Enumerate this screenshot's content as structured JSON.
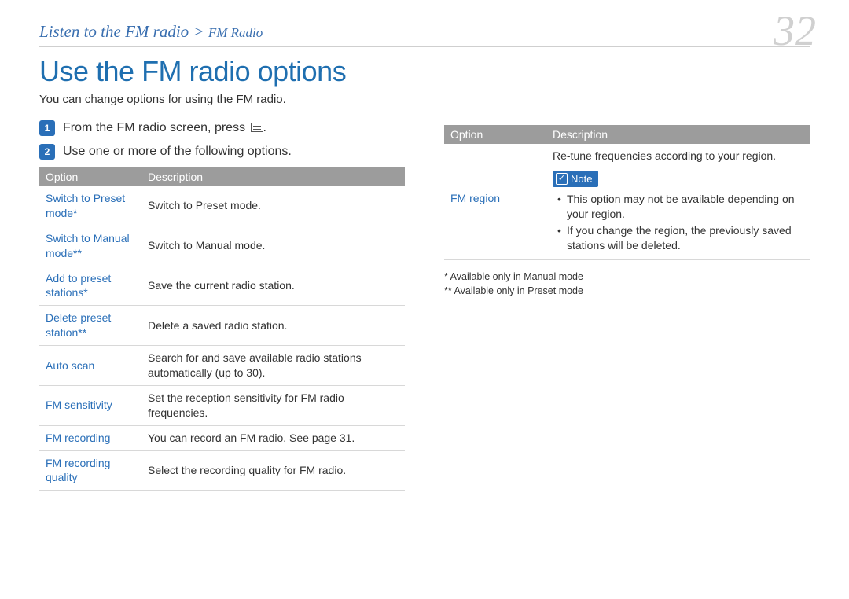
{
  "breadcrumb": {
    "main": "Listen to the FM radio",
    "sep": ">",
    "sub": "FM Radio"
  },
  "page_number": "32",
  "title": "Use the FM radio options",
  "intro": "You can change options for using the FM radio.",
  "steps": [
    {
      "num": "1",
      "text_pre": "From the FM radio screen, press ",
      "text_post": "."
    },
    {
      "num": "2",
      "text": "Use one or more of the following options."
    }
  ],
  "table_headers": {
    "option": "Option",
    "description": "Description"
  },
  "left_rows": [
    {
      "option": "Switch to Preset mode*",
      "desc": "Switch to Preset mode."
    },
    {
      "option": "Switch to Manual mode**",
      "desc": "Switch to Manual mode."
    },
    {
      "option": "Add to preset stations*",
      "desc": "Save the current radio station."
    },
    {
      "option": "Delete preset station**",
      "desc": "Delete a saved radio station."
    },
    {
      "option": "Auto scan",
      "desc": "Search for and save available radio stations automatically (up to 30)."
    },
    {
      "option": "FM sensitivity",
      "desc": "Set the reception sensitivity for FM radio frequencies."
    },
    {
      "option": "FM recording",
      "desc": "You can record an FM radio. See page 31."
    },
    {
      "option": "FM recording quality",
      "desc": "Select the recording quality for FM radio."
    }
  ],
  "right_row": {
    "option": "FM region",
    "desc_intro": "Re-tune frequencies according to your region.",
    "note_label": "Note",
    "notes": [
      "This option may not be available depending on your region.",
      "If you change the region, the previously saved stations will be deleted."
    ]
  },
  "footnotes": {
    "a": "* Available only in Manual mode",
    "b": "** Available only in Preset mode"
  },
  "colors": {
    "accent": "#2a6fb8",
    "breadcrumb": "#3a6fb0",
    "page_num": "#d0d0d0",
    "th_bg": "#9c9c9c",
    "border": "#d8d8d8"
  }
}
